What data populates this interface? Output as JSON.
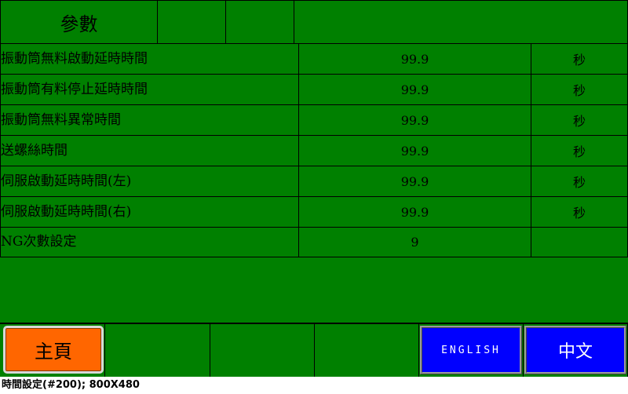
{
  "header": {
    "title": "參數"
  },
  "params": [
    {
      "label": "振動筒無料啟動延時時間",
      "value": "99.9",
      "unit": "秒"
    },
    {
      "label": "振動筒有料停止延時時間",
      "value": "99.9",
      "unit": "秒"
    },
    {
      "label": "振動筒無料異常時間",
      "value": "99.9",
      "unit": "秒"
    },
    {
      "label": "送螺絲時間",
      "value": "99.9",
      "unit": "秒"
    },
    {
      "label": "伺服啟動延時時間(左)",
      "value": "99.9",
      "unit": "秒"
    },
    {
      "label": "伺服啟動延時時間(右)",
      "value": "99.9",
      "unit": "秒"
    },
    {
      "label": "NG次數設定",
      "value": "9",
      "unit": ""
    }
  ],
  "footer": {
    "home_label": "主頁",
    "english_label": "ENGLISH",
    "chinese_label": "中文"
  },
  "status_bar": {
    "text": "時間設定(#200); 800X480"
  },
  "colors": {
    "background": "#008000",
    "home_button": "#ff6600",
    "lang_buttons": "#0000ff"
  }
}
